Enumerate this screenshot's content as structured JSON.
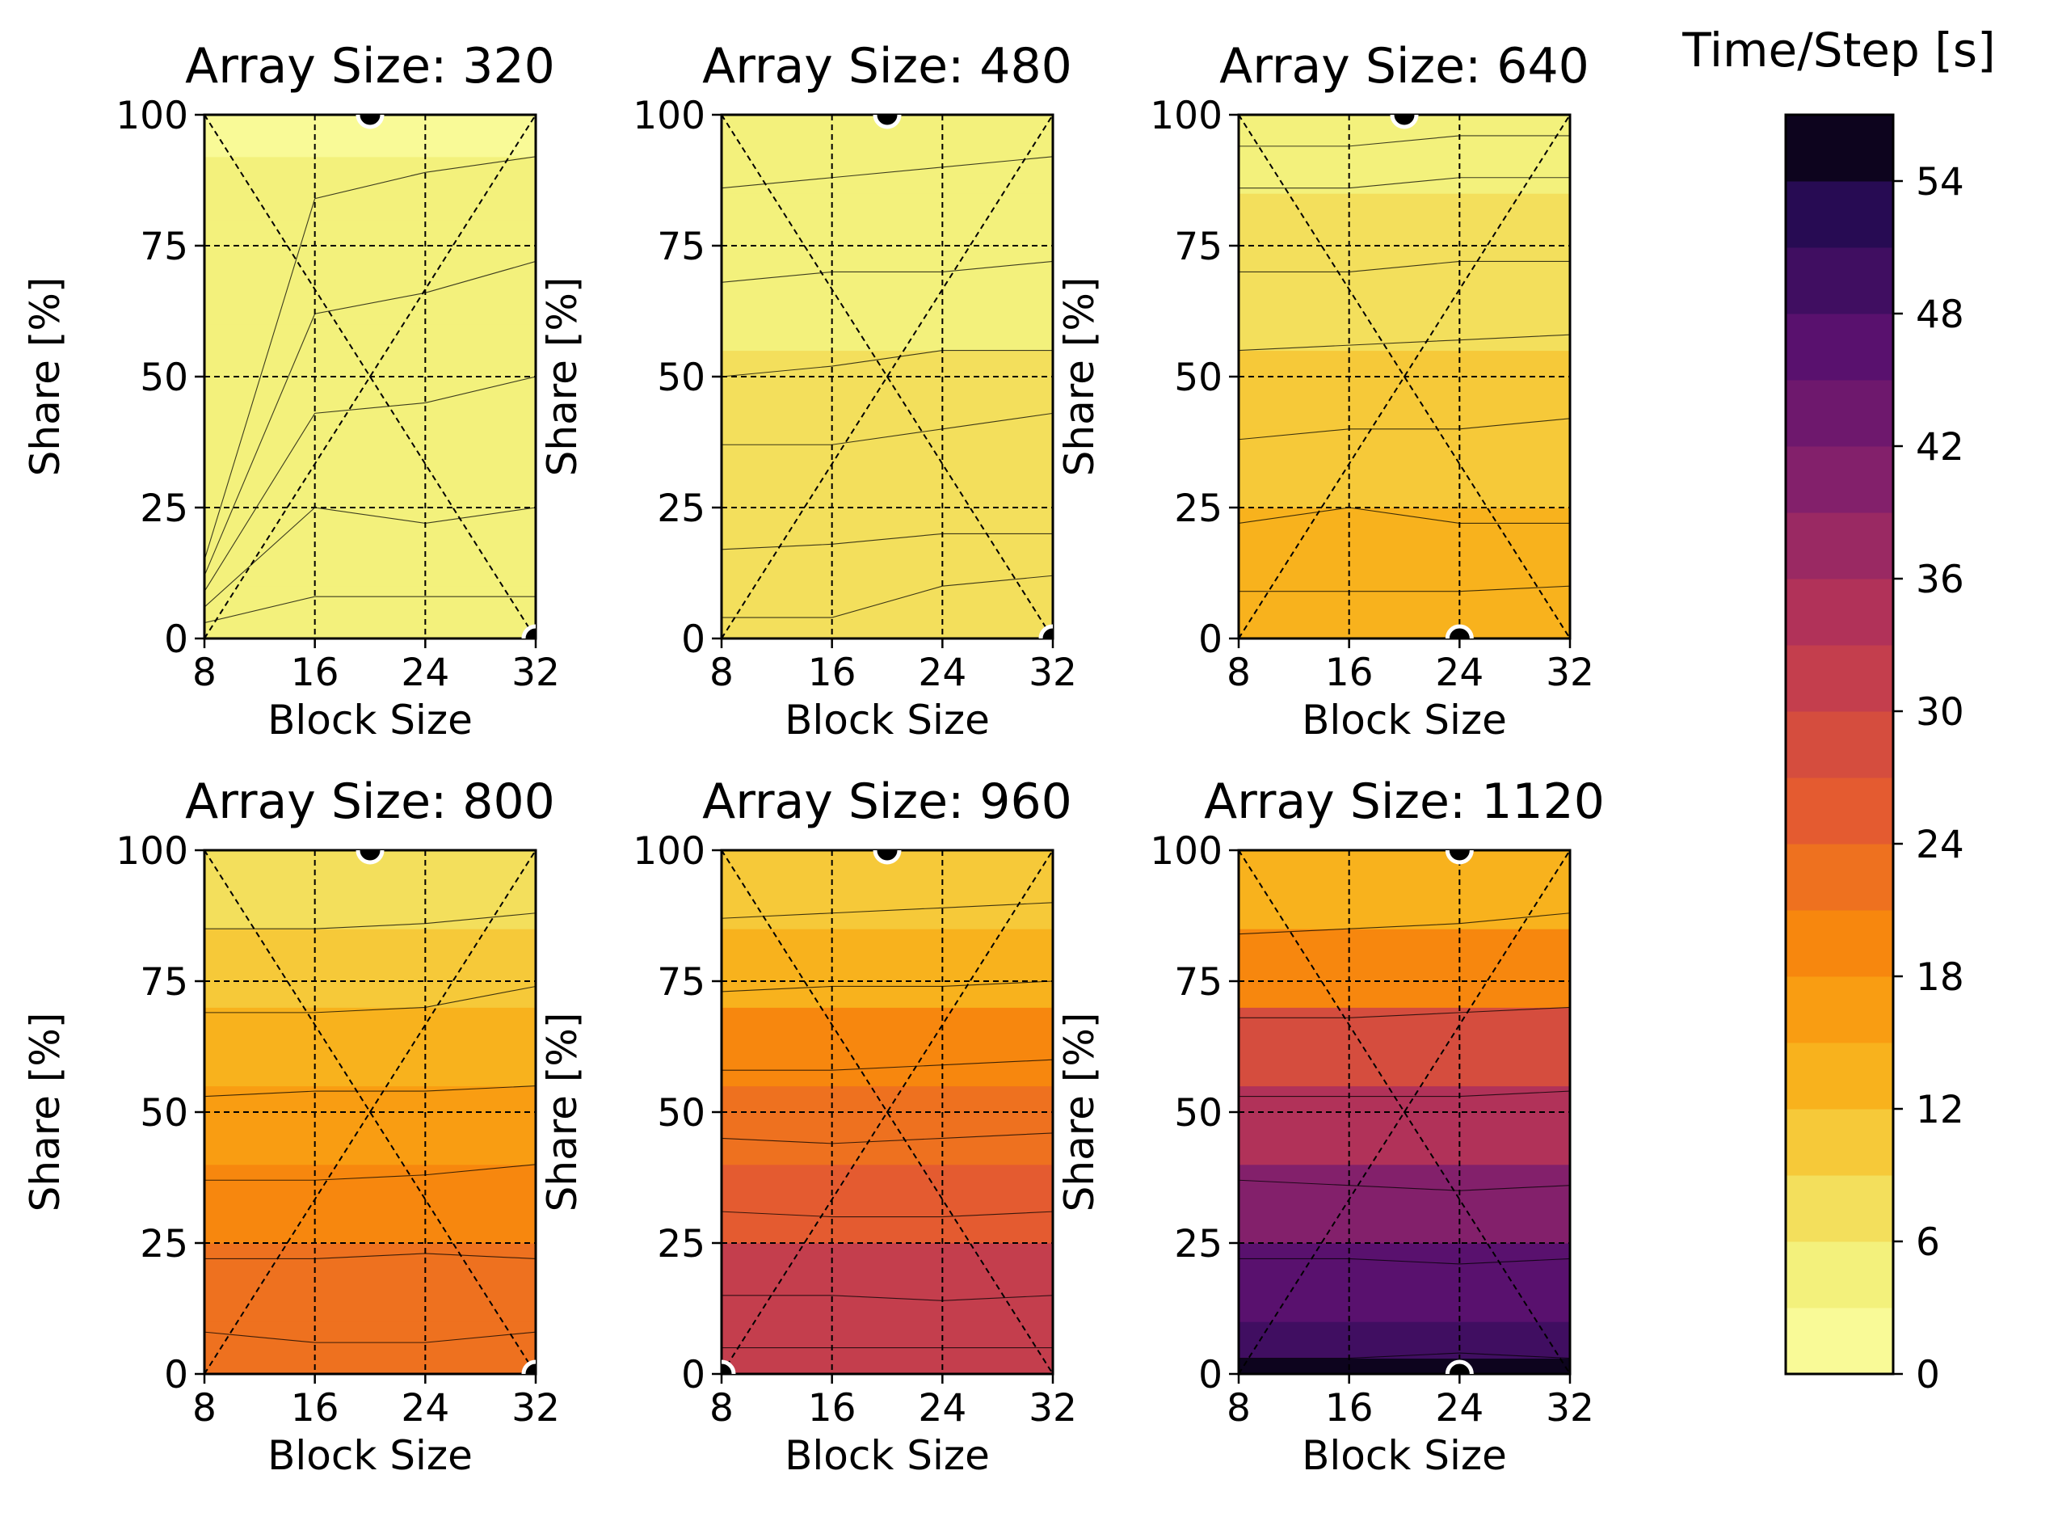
{
  "chart_data": {
    "type": "contour-grid",
    "x_label": "Block Size",
    "y_label": "Share [%]",
    "x_ticks": [
      8,
      16,
      24,
      32
    ],
    "y_ticks": [
      0,
      25,
      50,
      75,
      100
    ],
    "x_range": [
      8,
      32
    ],
    "y_range": [
      0,
      100
    ],
    "contour_levels": [
      0,
      3,
      6,
      9,
      12,
      15,
      18,
      21,
      24,
      27,
      30,
      33,
      36,
      39,
      42,
      45,
      48,
      51,
      54,
      57
    ],
    "panels": [
      {
        "title": "Array Size: 320",
        "optimum_markers": [
          {
            "x": 20,
            "y": 100
          },
          {
            "x": 32,
            "y": 0
          }
        ],
        "y_samples": [
          0,
          10,
          25,
          40,
          60,
          80,
          92,
          100
        ],
        "time_values": [
          5.4,
          5.0,
          4.6,
          4.2,
          3.8,
          3.3,
          2.8,
          2.4
        ],
        "boundary_share": [
          [
            3,
            8,
            8,
            8
          ],
          [
            6,
            25,
            22,
            25
          ],
          [
            9,
            43,
            45,
            50
          ],
          [
            12,
            62,
            66,
            72
          ],
          [
            15,
            84,
            89,
            92
          ]
        ]
      },
      {
        "title": "Array Size: 480",
        "optimum_markers": [
          {
            "x": 20,
            "y": 100
          },
          {
            "x": 32,
            "y": 0
          }
        ],
        "y_samples": [
          0,
          10,
          25,
          40,
          55,
          70,
          85,
          100
        ],
        "time_values": [
          9.2,
          8.4,
          7.8,
          7.0,
          6.3,
          5.6,
          4.4,
          3.2
        ],
        "boundary_share": [
          [
            4,
            4,
            10,
            12
          ],
          [
            17,
            18,
            20,
            20
          ],
          [
            37,
            37,
            40,
            43
          ],
          [
            50,
            52,
            55,
            55
          ],
          [
            68,
            70,
            70,
            72
          ],
          [
            86,
            88,
            90,
            92
          ]
        ]
      },
      {
        "title": "Array Size: 640",
        "optimum_markers": [
          {
            "x": 20,
            "y": 100
          },
          {
            "x": 24,
            "y": 0
          }
        ],
        "y_samples": [
          0,
          10,
          25,
          40,
          55,
          70,
          85,
          100
        ],
        "time_values": [
          14.5,
          13.2,
          11.8,
          10.5,
          9.2,
          7.6,
          5.6,
          3.6
        ],
        "boundary_share": [
          [
            9,
            9,
            9,
            10
          ],
          [
            22,
            25,
            22,
            22
          ],
          [
            38,
            40,
            40,
            42
          ],
          [
            55,
            56,
            57,
            58
          ],
          [
            70,
            70,
            72,
            72
          ],
          [
            86,
            86,
            88,
            88
          ],
          [
            94,
            94,
            96,
            96
          ]
        ]
      },
      {
        "title": "Array Size: 800",
        "optimum_markers": [
          {
            "x": 20,
            "y": 100
          },
          {
            "x": 32,
            "y": 0
          }
        ],
        "y_samples": [
          0,
          10,
          25,
          40,
          55,
          70,
          85,
          100
        ],
        "time_values": [
          23.6,
          22.2,
          20.2,
          18.0,
          15.6,
          12.8,
          9.0,
          5.4
        ],
        "boundary_share": [
          [
            8,
            6,
            6,
            8
          ],
          [
            22,
            22,
            23,
            22
          ],
          [
            37,
            37,
            38,
            40
          ],
          [
            53,
            54,
            54,
            55
          ],
          [
            69,
            69,
            70,
            74
          ],
          [
            85,
            85,
            86,
            88
          ]
        ]
      },
      {
        "title": "Array Size: 960",
        "optimum_markers": [
          {
            "x": 20,
            "y": 100
          },
          {
            "x": 8,
            "y": 0
          }
        ],
        "y_samples": [
          0,
          10,
          25,
          40,
          55,
          70,
          85,
          100
        ],
        "time_values": [
          34.0,
          31.8,
          28.5,
          25.2,
          21.6,
          17.4,
          12.0,
          7.0
        ],
        "boundary_share": [
          [
            5,
            5,
            5,
            5
          ],
          [
            15,
            15,
            14,
            15
          ],
          [
            31,
            30,
            30,
            31
          ],
          [
            45,
            44,
            45,
            46
          ],
          [
            58,
            58,
            59,
            60
          ],
          [
            73,
            74,
            74,
            75
          ],
          [
            87,
            88,
            89,
            90
          ]
        ]
      },
      {
        "title": "Array Size: 1120",
        "optimum_markers": [
          {
            "x": 24,
            "y": 100
          },
          {
            "x": 24,
            "y": 0
          }
        ],
        "y_samples": [
          0,
          3,
          10,
          25,
          40,
          55,
          70,
          85,
          100
        ],
        "time_values": [
          56.0,
          52.0,
          48.5,
          43.0,
          37.5,
          31.5,
          24.6,
          17.0,
          8.0
        ],
        "boundary_share": [
          [
            3,
            3,
            4,
            3
          ],
          [
            22,
            22,
            21,
            22
          ],
          [
            37,
            36,
            35,
            36
          ],
          [
            53,
            53,
            53,
            54
          ],
          [
            68,
            68,
            69,
            70
          ],
          [
            84,
            85,
            86,
            88
          ]
        ]
      }
    ],
    "colorbar": {
      "title": "Time/Step [s]",
      "ticks": [
        0,
        6,
        12,
        18,
        24,
        30,
        36,
        42,
        48,
        54
      ],
      "range": [
        0,
        57
      ],
      "colormap": "inferno_r"
    }
  }
}
